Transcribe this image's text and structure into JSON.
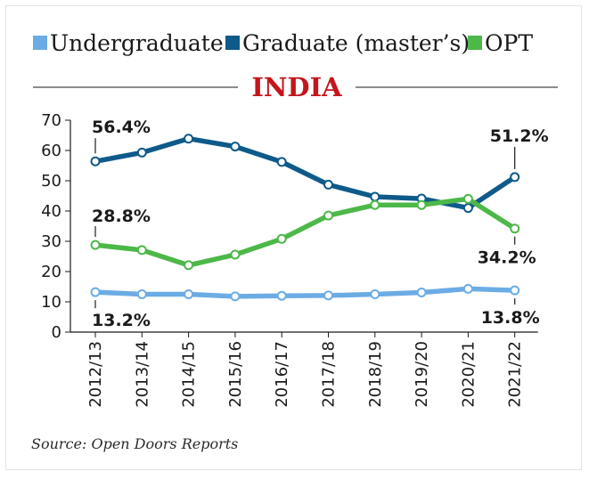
{
  "chart_data": {
    "type": "line",
    "title": "INDIA",
    "categories": [
      "2012/13",
      "2013/14",
      "2014/15",
      "2015/16",
      "2016/17",
      "2017/18",
      "2018/19",
      "2019/20",
      "2020/21",
      "2021/22"
    ],
    "ylim": [
      0,
      70
    ],
    "yticks": [
      0,
      10,
      20,
      30,
      40,
      50,
      60,
      70
    ],
    "grid": false,
    "legend_position": "top",
    "series": [
      {
        "name": "Undergraduate",
        "color": "#6cace4",
        "values": [
          13.2,
          12.5,
          12.5,
          11.8,
          12.0,
          12.1,
          12.5,
          13.1,
          14.3,
          13.8
        ]
      },
      {
        "name": "Graduate (master’s)",
        "color": "#0e5a8a",
        "values": [
          56.4,
          59.3,
          63.9,
          61.3,
          56.2,
          48.7,
          44.7,
          44.1,
          41.0,
          51.2
        ]
      },
      {
        "name": "OPT",
        "color": "#4cb848",
        "values": [
          28.8,
          27.1,
          22.1,
          25.6,
          30.8,
          38.5,
          42.0,
          42.0,
          44.0,
          34.2
        ]
      }
    ],
    "callouts": [
      {
        "text": "56.4%",
        "series": 1,
        "index": 0
      },
      {
        "text": "51.2%",
        "series": 1,
        "index": 9
      },
      {
        "text": "28.8%",
        "series": 2,
        "index": 0
      },
      {
        "text": "34.2%",
        "series": 2,
        "index": 9
      },
      {
        "text": "13.2%",
        "series": 0,
        "index": 0
      },
      {
        "text": "13.8%",
        "series": 0,
        "index": 9
      }
    ],
    "source": "Source: Open Doors Reports"
  }
}
